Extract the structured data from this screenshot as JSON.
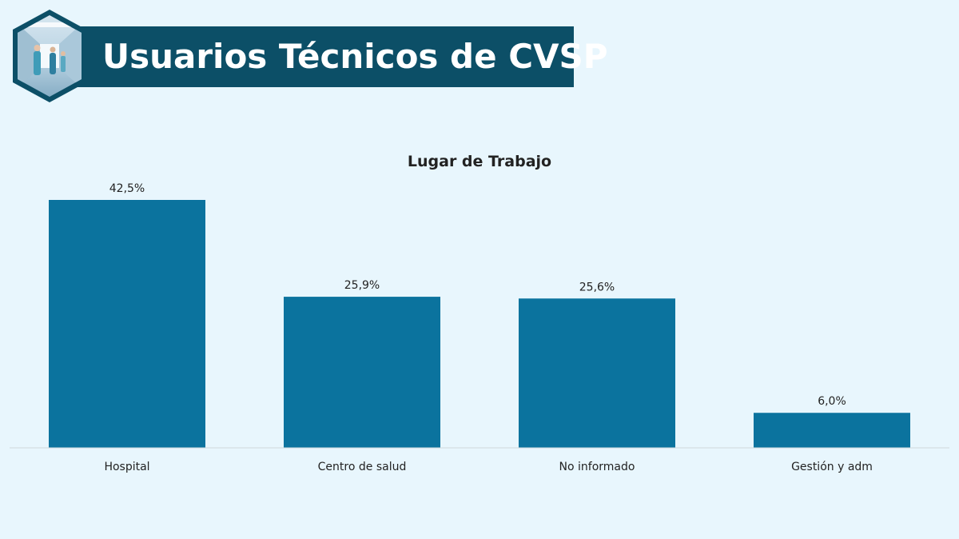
{
  "header": {
    "title": "Usuarios Técnicos de CVSP",
    "banner_color": "#0c4f67",
    "badge_icon": "hospital-corridor-photo"
  },
  "chart_data": {
    "type": "bar",
    "title": "Lugar de Trabajo",
    "categories": [
      "Hospital",
      "Centro de salud",
      "No informado",
      "Gestión y adm"
    ],
    "values": [
      42.5,
      25.9,
      25.6,
      6.0
    ],
    "value_labels": [
      "42,5%",
      "25,9%",
      "25,6%",
      "6,0%"
    ],
    "unit": "%",
    "xlabel": "",
    "ylabel": "",
    "ylim": [
      0,
      42.5
    ],
    "grid": false,
    "legend": "none",
    "bar_color": "#0b739e",
    "background_color": "#e8f6fd"
  }
}
